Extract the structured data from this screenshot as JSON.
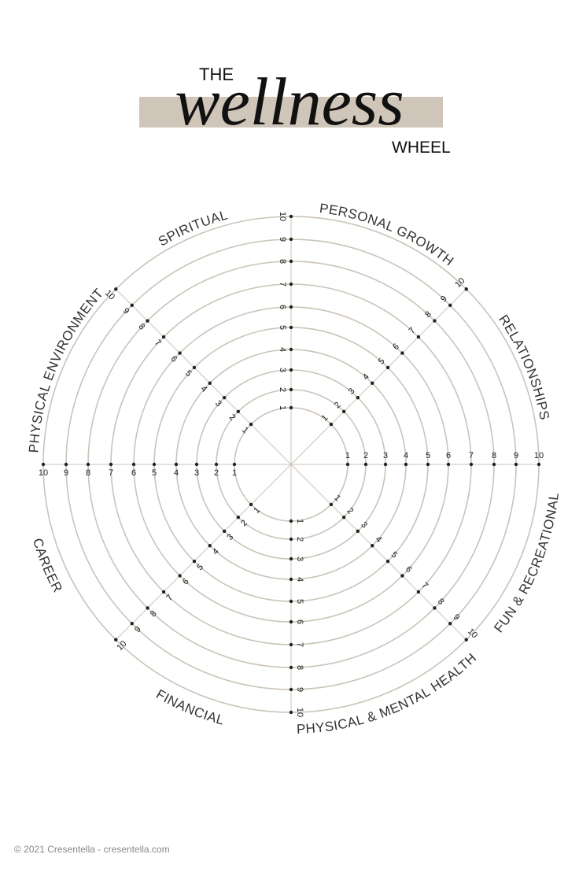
{
  "header": {
    "the": "THE",
    "script": "wellness",
    "wheel": "WHEEL"
  },
  "segments": [
    "PERSONAL GROWTH",
    "RELATIONSHIPS",
    "FUN & RECREATIONAL",
    "PHYSICAL & MENTAL HEALTH",
    "FINANCIAL",
    "CAREER",
    "PHYSICAL ENVIRONMENT",
    "SPIRITUAL"
  ],
  "scale": [
    1,
    2,
    3,
    4,
    5,
    6,
    7,
    8,
    9,
    10
  ],
  "footer": "© 2021 Cresentella - cresentella.com"
}
